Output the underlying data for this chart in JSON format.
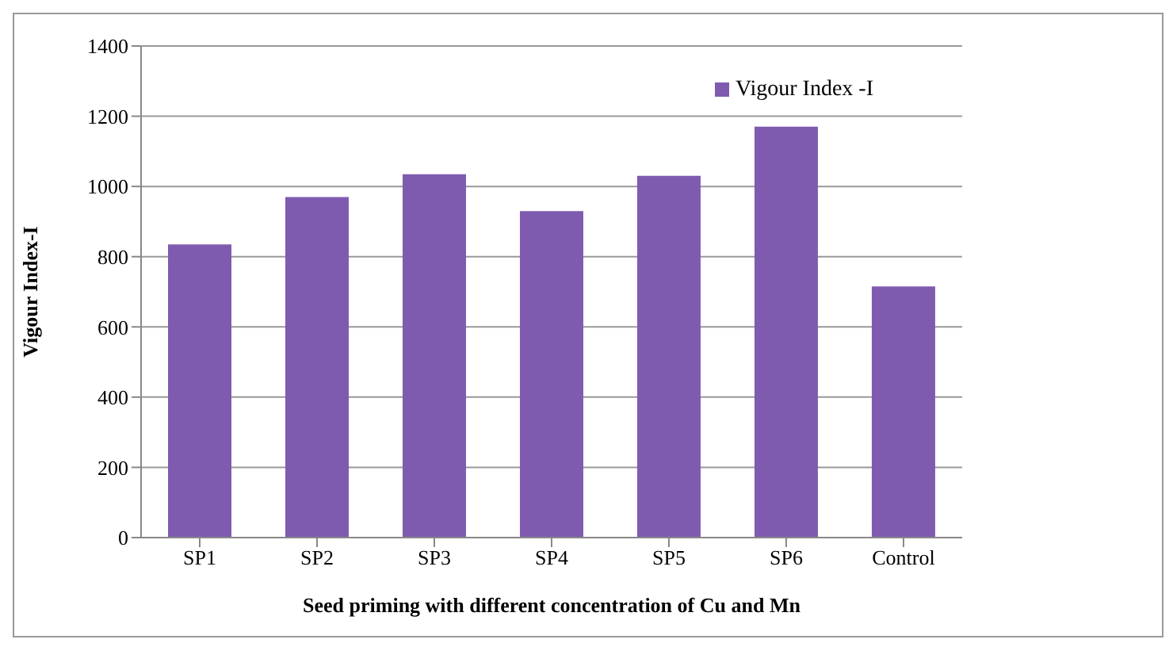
{
  "chart_data": {
    "type": "bar",
    "xlabel": "Seed priming with different concentration of Cu and Mn",
    "ylabel": "Vigour Index-I",
    "categories": [
      "SP1",
      "SP2",
      "SP3",
      "SP4",
      "SP5",
      "SP6",
      "Control"
    ],
    "series": [
      {
        "name": "Vigour Index -I",
        "color": "#7f5bb0",
        "values": [
          835,
          970,
          1035,
          930,
          1030,
          1170,
          715
        ]
      }
    ],
    "ylim": [
      0,
      1400
    ],
    "yticks": [
      0,
      200,
      400,
      600,
      800,
      1000,
      1200,
      1400
    ],
    "grid": "y",
    "legend": "top right"
  }
}
